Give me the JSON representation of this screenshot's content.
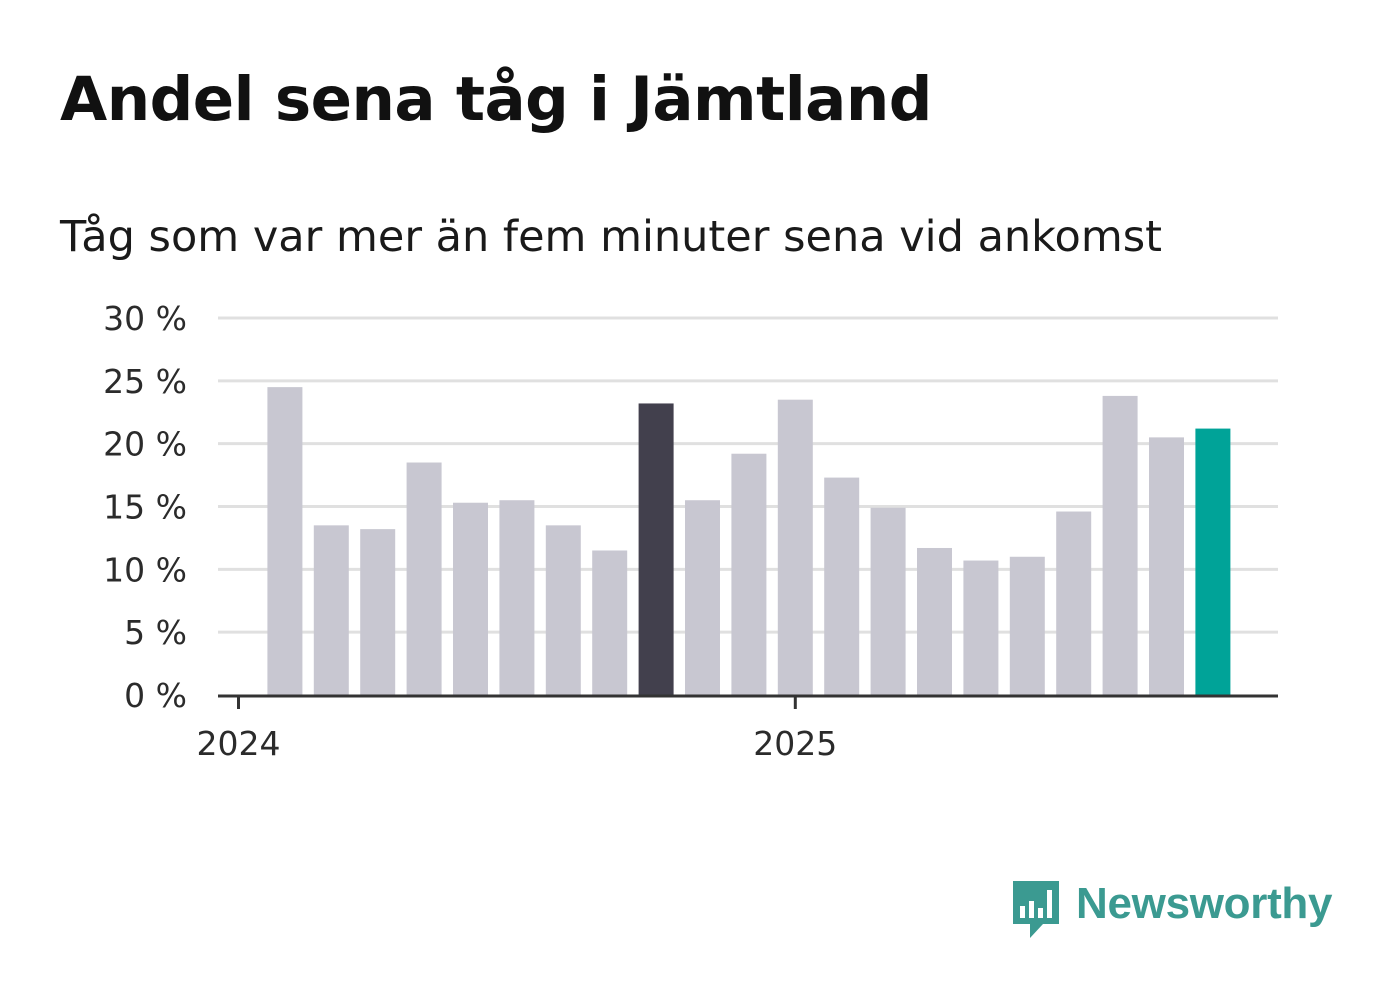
{
  "title": "Andel sena tåg i Jämtland",
  "subtitle": "Tåg som var mer än fem minuter sena vid ankomst",
  "brand": {
    "name": "Newsworthy",
    "color": "#3b9a91",
    "icon": "newsworthy-chart-bubble-icon"
  },
  "colors": {
    "bar_default": "#c8c7d1",
    "bar_highlight_dark": "#42404d",
    "bar_highlight_latest": "#00a398",
    "gridline": "#e0e0e0",
    "axis": "#333333"
  },
  "chart_data": {
    "type": "bar",
    "title": "Andel sena tåg i Jämtland",
    "subtitle": "Tåg som var mer än fem minuter sena vid ankomst",
    "xlabel": "",
    "ylabel": "",
    "unit": "%",
    "ylim": [
      0,
      30
    ],
    "yticks": [
      0,
      5,
      10,
      15,
      20,
      25,
      30
    ],
    "ytick_labels": [
      "0 %",
      "5 %",
      "10 %",
      "15 %",
      "20 %",
      "25 %",
      "30 %"
    ],
    "grid": true,
    "xticks": [
      {
        "label": "2024",
        "month_index": 0
      },
      {
        "label": "2025",
        "month_index": 12
      }
    ],
    "start": "2024-01",
    "categories": [
      "2024-02",
      "2024-03",
      "2024-04",
      "2024-05",
      "2024-06",
      "2024-07",
      "2024-08",
      "2024-09",
      "2024-10",
      "2024-11",
      "2024-12",
      "2025-01",
      "2025-02",
      "2025-03",
      "2025-04",
      "2025-05",
      "2025-06",
      "2025-07",
      "2025-08",
      "2025-09",
      "2025-10"
    ],
    "month_index": [
      1,
      2,
      3,
      4,
      5,
      6,
      7,
      8,
      9,
      10,
      11,
      12,
      13,
      14,
      15,
      16,
      17,
      18,
      19,
      20,
      21
    ],
    "values": [
      24.5,
      13.5,
      13.2,
      18.5,
      15.3,
      15.5,
      13.5,
      11.5,
      23.2,
      15.5,
      19.2,
      23.5,
      17.3,
      14.9,
      11.7,
      10.7,
      11.0,
      14.6,
      23.8,
      20.5,
      21.2
    ],
    "highlights": {
      "2024-10": "bar_highlight_dark",
      "2025-10": "bar_highlight_latest"
    }
  }
}
